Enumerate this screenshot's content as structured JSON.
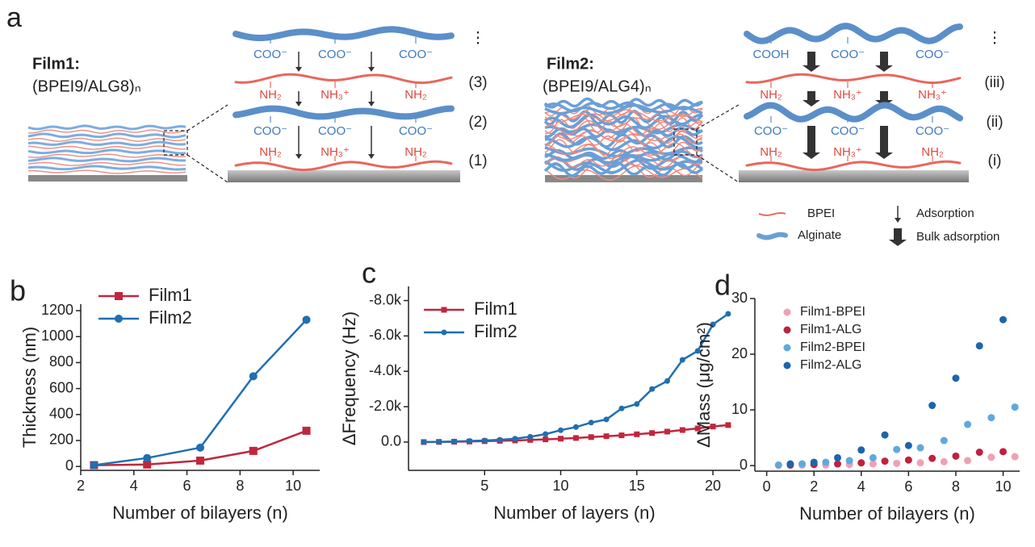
{
  "panel_a": {
    "label": "a",
    "film1": {
      "name": "Film1:",
      "formula": "(BPEI9/ALG8)ₙ",
      "layers": [
        {
          "step": "⋮",
          "labels": [
            "COO⁻",
            "COO⁻",
            "COO⁻"
          ]
        },
        {
          "step": "(3)",
          "labels": [
            "NH₂",
            "NH₃⁺",
            "NH₂"
          ]
        },
        {
          "step": "(2)",
          "labels": [
            "COO⁻",
            "COO⁻",
            "COO⁻"
          ]
        },
        {
          "step": "(1)",
          "labels": [
            "NH₂",
            "NH₃⁺",
            "NH₂"
          ]
        }
      ]
    },
    "film2": {
      "name": "Film2:",
      "formula": "(BPEI9/ALG4)ₙ",
      "layers": [
        {
          "step": "⋮",
          "labels": [
            "COOH",
            "COO⁻",
            "COO⁻"
          ]
        },
        {
          "step": "(iii)",
          "labels": [
            "NH₂",
            "NH₃⁺",
            "NH₃⁺"
          ]
        },
        {
          "step": "(ii)",
          "labels": [
            "COO⁻",
            "COO⁻",
            "COO⁻"
          ]
        },
        {
          "step": "(i)",
          "labels": [
            "NH₂",
            "NH₃⁺",
            "NH₂"
          ]
        }
      ]
    },
    "legend": [
      "BPEI",
      "Alginate",
      "Adsorption",
      "Bulk adsorption"
    ]
  },
  "chart_data": [
    {
      "panel": "b",
      "type": "line",
      "x_label": "Number of bilayers (n)",
      "y_label": "Thickness (nm)",
      "x": [
        2.5,
        4.5,
        6.5,
        8.5,
        10.5
      ],
      "series": [
        {
          "name": "Film1",
          "color": "#c0273f",
          "marker": "square",
          "values": [
            10,
            15,
            45,
            120,
            275
          ]
        },
        {
          "name": "Film2",
          "color": "#1f6fb2",
          "marker": "circle",
          "values": [
            10,
            65,
            145,
            695,
            1130
          ]
        }
      ],
      "xlim": [
        2,
        11
      ],
      "xticks": [
        2,
        4,
        6,
        8,
        10
      ],
      "ylim": [
        -30,
        1250
      ],
      "yticks": [
        0,
        200,
        400,
        600,
        800,
        1000,
        1200
      ]
    },
    {
      "panel": "c",
      "type": "line",
      "x_label": "Number of layers (n)",
      "y_label": "ΔFrequency (Hz)",
      "x": [
        1,
        2,
        3,
        4,
        5,
        6,
        7,
        8,
        9,
        10,
        11,
        12,
        13,
        14,
        15,
        16,
        17,
        18,
        19,
        20,
        21
      ],
      "series": [
        {
          "name": "Film1",
          "color": "#c0273f",
          "marker": "square",
          "values": [
            0,
            -10,
            -20,
            -30,
            -50,
            -70,
            -90,
            -120,
            -150,
            -190,
            -230,
            -280,
            -330,
            -380,
            -440,
            -510,
            -590,
            -680,
            -770,
            -880,
            -960
          ]
        },
        {
          "name": "Film2",
          "color": "#1f6fb2",
          "marker": "circle",
          "values": [
            0,
            -10,
            -30,
            -60,
            -90,
            -130,
            -190,
            -300,
            -450,
            -670,
            -850,
            -1100,
            -1280,
            -1900,
            -2150,
            -3000,
            -3450,
            -4650,
            -5150,
            -6650,
            -7250
          ]
        }
      ],
      "xlim": [
        0,
        21.8
      ],
      "xticks": [
        5,
        10,
        15,
        20
      ],
      "ylim": [
        1600,
        -8800
      ],
      "yticks": [
        {
          "value": 0,
          "label": "0.0"
        },
        {
          "value": -2000,
          "label": "-2.0k"
        },
        {
          "value": -4000,
          "label": "-4.0k"
        },
        {
          "value": -6000,
          "label": "-6.0k"
        },
        {
          "value": -8000,
          "label": "-8.0k"
        }
      ]
    },
    {
      "panel": "d",
      "type": "scatter",
      "x_label": "Number of bilayers (n)",
      "y_label": "ΔMass (μg/cm²)",
      "series": [
        {
          "name": "Film1-BPEI",
          "color": "#f0a0b4",
          "x": [
            0.5,
            1.5,
            2.5,
            3.5,
            4.5,
            5.5,
            6.5,
            7.5,
            8.5,
            9.5,
            10.5
          ],
          "values": [
            0.05,
            0.1,
            0.1,
            0.2,
            0.3,
            0.4,
            0.5,
            0.7,
            0.9,
            1.5,
            1.6
          ]
        },
        {
          "name": "Film1-ALG",
          "color": "#c0213f",
          "x": [
            1,
            2,
            3,
            4,
            5,
            6,
            7,
            8,
            9,
            10
          ],
          "values": [
            0.1,
            0.2,
            0.3,
            0.5,
            0.8,
            1.0,
            1.3,
            1.7,
            2.4,
            2.5
          ]
        },
        {
          "name": "Film2-BPEI",
          "color": "#5fa8de",
          "x": [
            0.5,
            1.5,
            2.5,
            3.5,
            4.5,
            5.5,
            6.5,
            7.5,
            8.5,
            9.5,
            10.5
          ],
          "values": [
            0.1,
            0.3,
            0.6,
            0.9,
            1.4,
            2.9,
            3.2,
            4.5,
            7.4,
            8.6,
            10.5
          ]
        },
        {
          "name": "Film2-ALG",
          "color": "#1d64ad",
          "x": [
            1,
            2,
            3,
            4,
            5,
            6,
            7,
            8,
            9,
            10
          ],
          "values": [
            0.3,
            0.6,
            1.4,
            2.8,
            5.5,
            3.6,
            10.8,
            15.7,
            21.5,
            26.2
          ]
        }
      ],
      "xlim": [
        -0.5,
        10.7
      ],
      "xticks": [
        0,
        2,
        4,
        6,
        8,
        10
      ],
      "ylim": [
        -1,
        30
      ],
      "yticks": [
        0,
        10,
        20,
        30
      ]
    }
  ]
}
